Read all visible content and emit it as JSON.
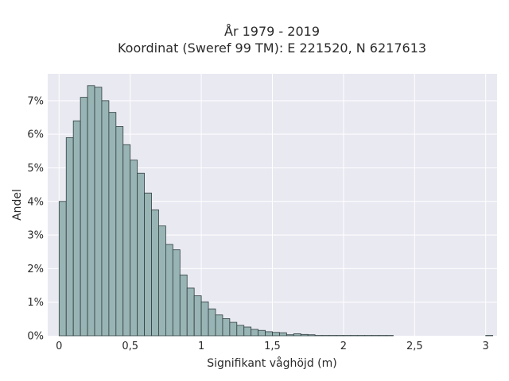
{
  "chart_data": {
    "type": "bar",
    "title_line1": "År 1979 - 2019",
    "title_line2": "Koordinat (Sweref 99 TM): E 221520, N 6217613",
    "xlabel": "Signifikant våghöjd (m)",
    "ylabel": "Andel",
    "xlim": [
      -0.08,
      3.08
    ],
    "ylim": [
      0,
      0.078
    ],
    "x_ticks": [
      0,
      0.5,
      1,
      1.5,
      2,
      2.5,
      3
    ],
    "x_tick_labels": [
      "0",
      "0,5",
      "1",
      "1,5",
      "2",
      "2,5",
      "3"
    ],
    "y_ticks": [
      0,
      0.01,
      0.02,
      0.03,
      0.04,
      0.05,
      0.06,
      0.07
    ],
    "y_tick_labels": [
      "0%",
      "1%",
      "2%",
      "3%",
      "4%",
      "5%",
      "6%",
      "7%"
    ],
    "bin_width": 0.05,
    "bin_start": 0,
    "values": [
      0.04,
      0.059,
      0.064,
      0.071,
      0.0745,
      0.074,
      0.07,
      0.0665,
      0.0623,
      0.0569,
      0.0523,
      0.0484,
      0.0425,
      0.0375,
      0.0327,
      0.0272,
      0.0256,
      0.0181,
      0.0142,
      0.0119,
      0.0101,
      0.008,
      0.0062,
      0.0051,
      0.004,
      0.0031,
      0.0026,
      0.0019,
      0.0016,
      0.0012,
      0.001,
      0.0009,
      0.0003,
      0.0006,
      0.0004,
      0.0003,
      0.0001,
      0.0001,
      0.0001,
      0.0001,
      0.0001,
      0.0001,
      0.0001,
      0.0001,
      0.0001,
      0.0001,
      0.0001,
      0.0,
      0.0,
      0.0,
      0.0,
      0.0,
      0.0,
      0.0,
      0.0,
      0.0,
      0.0,
      0.0,
      0.0,
      0.0,
      0.0001
    ],
    "grid": true,
    "colors": {
      "plot_bg": "#e9e9f2",
      "grid": "#ffffff",
      "bar_fill": "#99b4b4",
      "bar_stroke": "#2f3f3f",
      "text": "#2a2a2a"
    }
  }
}
